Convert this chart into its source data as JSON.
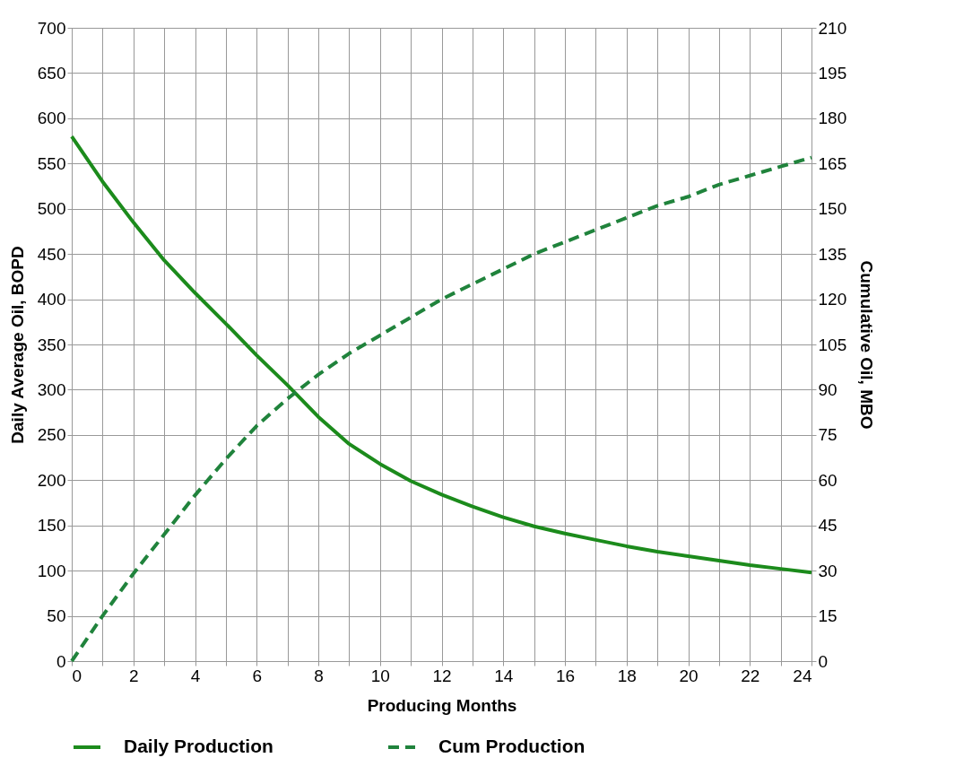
{
  "chart_data": {
    "type": "line",
    "xlabel": "Producing Months",
    "ylabel": "Daily Average Oil, BOPD",
    "y2label": "Cumulative Oil, MBO",
    "x": [
      0,
      1,
      2,
      3,
      4,
      5,
      6,
      7,
      8,
      9,
      10,
      11,
      12,
      13,
      14,
      15,
      16,
      17,
      18,
      19,
      20,
      21,
      22,
      23,
      24
    ],
    "series": [
      {
        "name": "Daily Production",
        "color": "#1c8b1c",
        "line_style": "solid",
        "values": [
          580,
          530,
          485,
          443,
          407,
          373,
          338,
          305,
          270,
          240,
          218,
          199,
          184,
          171,
          159,
          149,
          141,
          134,
          127,
          121,
          116,
          111,
          106,
          102,
          98
        ]
      },
      {
        "name": "Cum Production",
        "color": "#20833c",
        "line_style": "dashed",
        "axis": "y2",
        "values": [
          0,
          15,
          29,
          42,
          55,
          67,
          78,
          87,
          95,
          102,
          108,
          114,
          120,
          125,
          130,
          135,
          139,
          143,
          147,
          151,
          154,
          158,
          161,
          164,
          167
        ]
      }
    ],
    "xlim": [
      0,
      24
    ],
    "xticks": [
      0,
      {
        "value": 1,
        "label": null
      },
      2,
      {
        "value": 3,
        "label": null
      },
      4,
      {
        "value": 5,
        "label": null
      },
      6,
      {
        "value": 7,
        "label": null
      },
      8,
      {
        "value": 9,
        "label": null
      },
      10,
      {
        "value": 11,
        "label": null
      },
      12,
      {
        "value": 13,
        "label": null
      },
      14,
      {
        "value": 15,
        "label": null
      },
      16,
      {
        "value": 17,
        "label": null
      },
      18,
      {
        "value": 19,
        "label": null
      },
      20,
      {
        "value": 21,
        "label": null
      },
      22,
      {
        "value": 23,
        "label": null
      },
      24
    ],
    "ylim": [
      0,
      700
    ],
    "yticks": [
      0,
      50,
      100,
      150,
      200,
      250,
      300,
      350,
      400,
      450,
      500,
      550,
      600,
      650,
      700
    ],
    "y2lim": [
      0,
      210
    ],
    "y2ticks": [
      0,
      15,
      30,
      45,
      60,
      75,
      90,
      105,
      120,
      135,
      150,
      165,
      180,
      195,
      210
    ],
    "grid": true,
    "legend": "bottom",
    "marker": "none"
  }
}
